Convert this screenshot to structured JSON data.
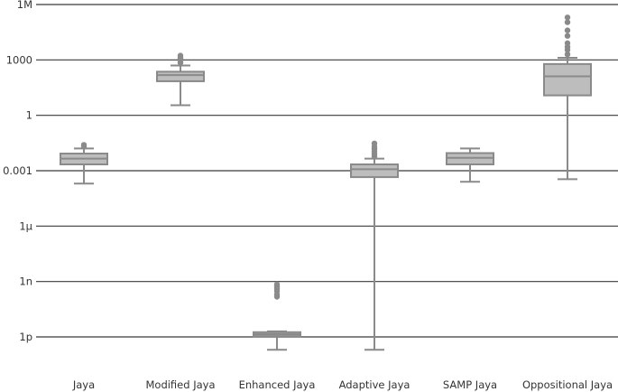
{
  "chart_data": {
    "type": "box",
    "title": "",
    "xlabel": "",
    "ylabel": "",
    "y_scale": "log",
    "ylim": [
      1e-13,
      1000000.0
    ],
    "yticks": [
      {
        "value": 1000000.0,
        "label": "1M"
      },
      {
        "value": 1000.0,
        "label": "1000"
      },
      {
        "value": 1,
        "label": "1"
      },
      {
        "value": 0.001,
        "label": "0.001"
      },
      {
        "value": 1e-06,
        "label": "1µ"
      },
      {
        "value": 1e-09,
        "label": "1n"
      },
      {
        "value": 1e-12,
        "label": "1p"
      }
    ],
    "grid": true,
    "categories": [
      "Jaya",
      "Modified Jaya",
      "Enhanced Jaya",
      "Adaptive Jaya",
      "SAMP Jaya",
      "Oppositional Jaya"
    ],
    "boxes": [
      {
        "name": "Jaya",
        "whisker_low": 0.0002,
        "q1": 0.0022,
        "median": 0.0045,
        "q3": 0.0085,
        "whisker_high": 0.016,
        "outliers": [
          0.02,
          0.025
        ]
      },
      {
        "name": "Modified Jaya",
        "whisker_low": 3.5,
        "q1": 70,
        "median": 150,
        "q3": 230,
        "whisker_high": 500,
        "outliers": [
          700,
          900,
          1150,
          1400,
          1700
        ]
      },
      {
        "name": "Enhanced Jaya",
        "whisker_low": 2e-13,
        "q1": 1.1e-12,
        "median": 1.4e-12,
        "q3": 1.8e-12,
        "whisker_high": 2e-12,
        "outliers": [
          1.5e-10,
          2e-10,
          3e-10,
          4e-10,
          5e-10,
          6e-10,
          7e-10
        ]
      },
      {
        "name": "Adaptive Jaya",
        "whisker_low": 2e-13,
        "q1": 0.00045,
        "median": 0.0012,
        "q3": 0.0022,
        "whisker_high": 0.0045,
        "outliers": [
          0.006,
          0.008,
          0.011,
          0.015,
          0.02,
          0.03
        ]
      },
      {
        "name": "SAMP Jaya",
        "whisker_low": 0.00025,
        "q1": 0.0022,
        "median": 0.005,
        "q3": 0.009,
        "whisker_high": 0.016,
        "outliers": []
      },
      {
        "name": "Oppositional Jaya",
        "whisker_low": 0.00035,
        "q1": 12,
        "median": 130,
        "q3": 600,
        "whisker_high": 1300,
        "outliers": [
          2000,
          3500,
          5000,
          8000,
          20000,
          40000,
          110000,
          200000
        ]
      }
    ]
  }
}
